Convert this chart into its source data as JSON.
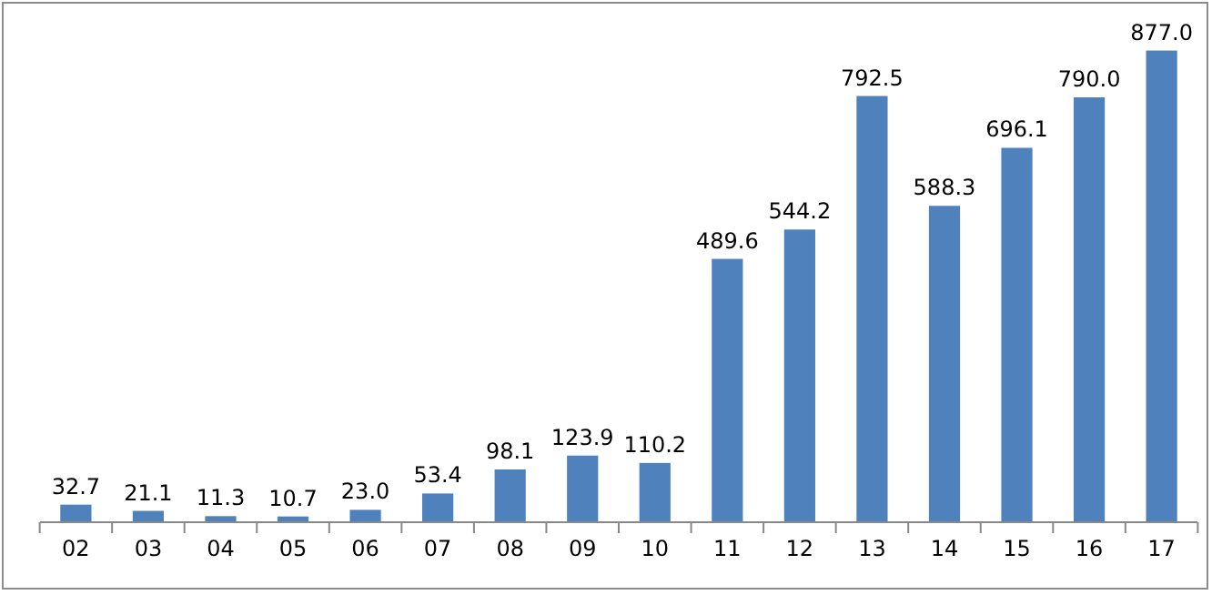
{
  "chart_data": {
    "type": "bar",
    "categories": [
      "02",
      "03",
      "04",
      "05",
      "06",
      "07",
      "08",
      "09",
      "10",
      "11",
      "12",
      "13",
      "14",
      "15",
      "16",
      "17"
    ],
    "values": [
      32.7,
      21.1,
      11.3,
      10.7,
      23.0,
      53.4,
      98.1,
      123.9,
      110.2,
      489.6,
      544.2,
      792.5,
      588.3,
      696.1,
      790.0,
      877.0
    ],
    "value_labels": [
      "32.7",
      "21.1",
      "11.3",
      "10.7",
      "23.0",
      "53.4",
      "98.1",
      "123.9",
      "110.2",
      "489.6",
      "544.2",
      "792.5",
      "588.3",
      "696.1",
      "790.0",
      "877.0"
    ],
    "color": "#4f81bd"
  }
}
